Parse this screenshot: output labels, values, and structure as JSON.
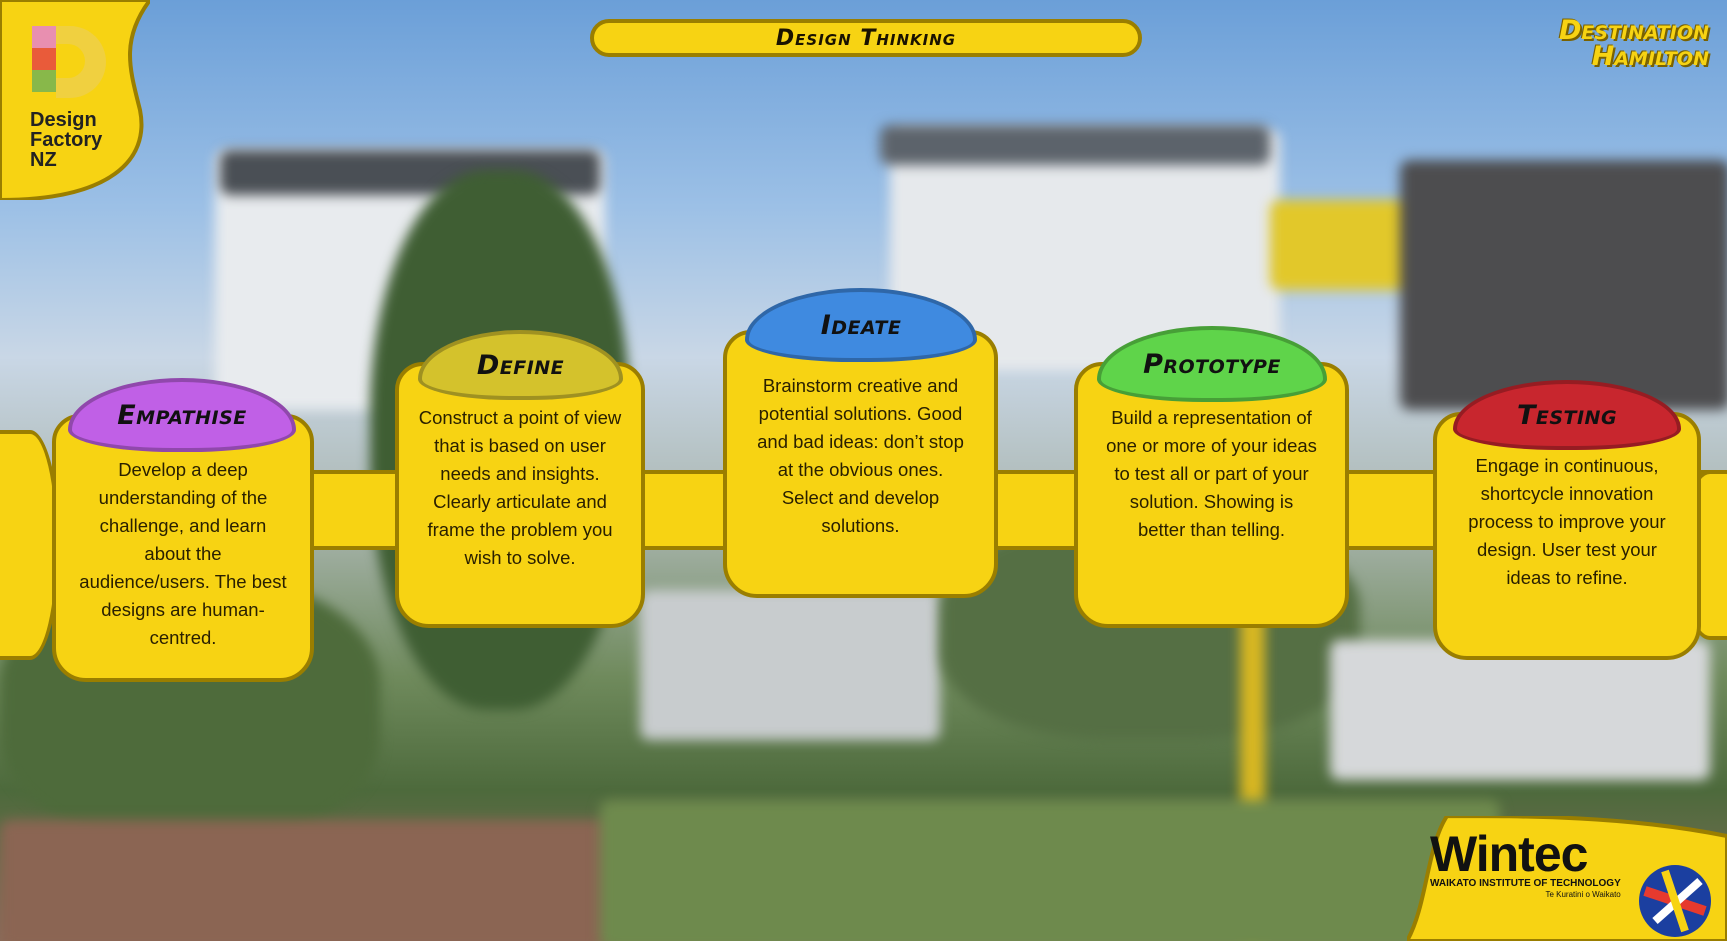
{
  "header": {
    "title": "Design Thinking"
  },
  "brand": {
    "left_logo": {
      "lines": [
        "Design",
        "Factory",
        "NZ"
      ]
    },
    "right_title": {
      "line1": "Destination",
      "line2": "Hamilton"
    },
    "bottom_logo": {
      "name": "Wintec",
      "subtitle": "WAIKATO INSTITUTE OF TECHNOLOGY",
      "tagline": "Te Kuratini o Waikato"
    }
  },
  "stages": [
    {
      "title": "Empathise",
      "color": "#c060e6",
      "text": "Develop a deep understanding of the challenge, and learn about the audience/users. The best designs are human-centred."
    },
    {
      "title": "Define",
      "color": "#d4c22c",
      "text": "Construct a point of view that is based on user needs and insights. Clearly articulate and frame the problem you wish to solve."
    },
    {
      "title": "Ideate",
      "color": "#3f8ae0",
      "text": "Brainstorm creative and potential solutions. Good and bad ideas: don’t stop at the obvious ones. Select and develop solutions."
    },
    {
      "title": "Prototype",
      "color": "#5fd44a",
      "text": "Build a representation of one or more of your ideas to test all or part of your solution. Showing is better than telling."
    },
    {
      "title": "Testing",
      "color": "#c8262e",
      "text": "Engage in continuous, shortcycle innovation process to improve your design. User test your ideas to refine."
    }
  ],
  "colors": {
    "accent": "#f7d313",
    "outline": "#9a7e00"
  }
}
